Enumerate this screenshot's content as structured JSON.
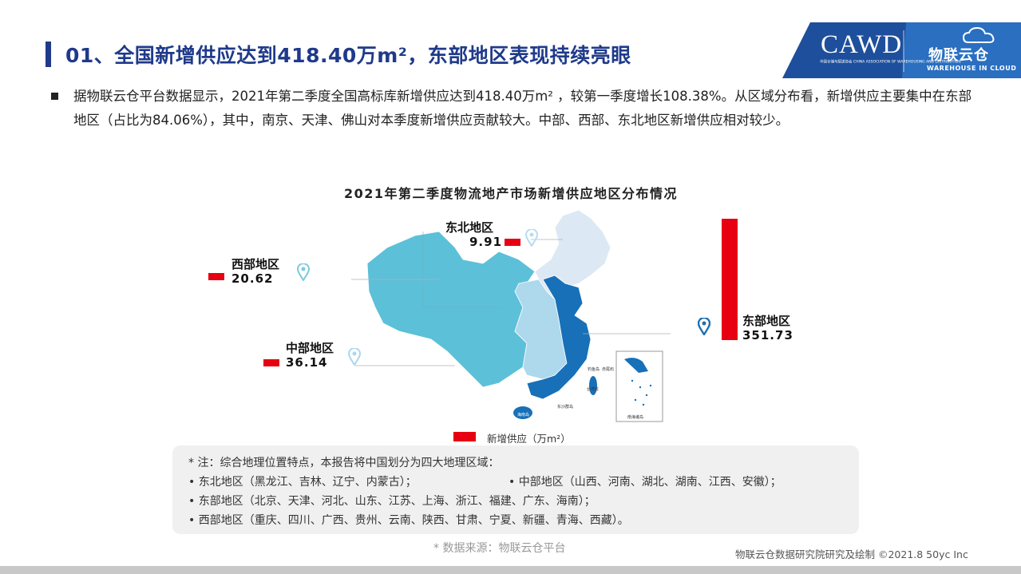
{
  "header": {
    "title": "01、全国新增供应达到418.40万m²，东部地区表现持续亮眼",
    "logo_main": "CAWD",
    "logo_sub": "中国仓储与配送协会 CHINA ASSOCIATION OF WAREHOUSING AND DISTRIBUTION",
    "logo_brand": "物联云仓",
    "logo_brand_en": "WAREHOUSE IN CLOUD"
  },
  "intro": {
    "text": "据物联云仓平台数据显示，2021年第二季度全国高标库新增供应达到418.40万m² ，较第一季度增长108.38%。从区域分布看，新增供应主要集中在东部地区（占比为84.06%），其中，南京、天津、佛山对本季度新增供应贡献较大。中部、西部、东北地区新增供应相对较少。"
  },
  "chart_data": {
    "type": "bar",
    "title": "2021年第二季度物流地产市场新增供应地区分布情况",
    "categories": [
      "东北地区",
      "西部地区",
      "中部地区",
      "东部地区"
    ],
    "series": [
      {
        "name": "新增供应（万m²）",
        "values": [
          9.91,
          20.62,
          36.14,
          351.73
        ]
      }
    ],
    "value_labels": [
      "9.91",
      "20.62",
      "36.14",
      "351.73"
    ],
    "legend": "新增供应（万m²）",
    "legend_position": "bottom",
    "colors": {
      "bar": "#e60012",
      "pin_light": "#8ecfe0",
      "pin_dark": "#1f6fb0"
    }
  },
  "map_labels": {
    "island_north": "钓鱼岛",
    "island_north2": "赤尾屿",
    "taiwan": "台湾省",
    "hainan": "海南岛",
    "east_sea": "东沙群岛",
    "south_sea": "南海诸岛"
  },
  "notes": {
    "heading": "* 注：综合地理位置特点，本报告将中国划分为四大地理区域：",
    "northeast": "• 东北地区（黑龙江、吉林、辽宁、内蒙古）；",
    "central": "• 中部地区（山西、河南、湖北、湖南、江西、安徽）；",
    "east": "• 东部地区（北京、天津、河北、山东、江苏、上海、浙江、福建、广东、海南）；",
    "west": "• 西部地区（重庆、四川、广西、贵州、云南、陕西、甘肃、宁夏、新疆、青海、西藏）。"
  },
  "source": "* 数据来源：物联云仓平台",
  "footer": "物联云仓数据研究院研究及绘制 ©2021.8 50yc Inc",
  "colors": {
    "title": "#1f3a8a",
    "bar": "#e60012",
    "note_bg": "#f0f0f0"
  }
}
